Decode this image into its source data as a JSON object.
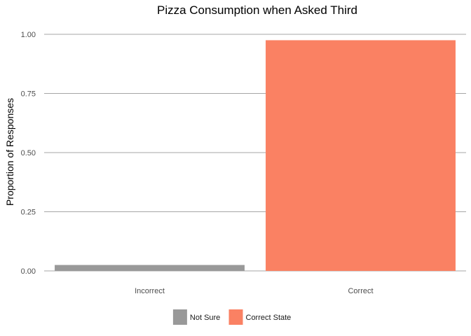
{
  "chart_data": {
    "type": "bar",
    "title": "Pizza Consumption when Asked Third",
    "xlabel": "",
    "ylabel": "Proportion of Responses",
    "categories": [
      "Incorrect",
      "Correct"
    ],
    "values": [
      0.025,
      0.975
    ],
    "bar_colors": [
      "#999999",
      "#fa8163"
    ],
    "ylim": [
      0,
      1
    ],
    "yticks": [
      0,
      0.25,
      0.5,
      0.75,
      1.0
    ],
    "ytick_labels": [
      "0.00",
      "0.25",
      "0.50",
      "0.75",
      "1.00"
    ],
    "grid": true,
    "legend": {
      "position": "bottom",
      "entries": [
        {
          "label": "Not Sure",
          "color": "#999999"
        },
        {
          "label": "Correct State",
          "color": "#fa8163"
        }
      ]
    }
  }
}
